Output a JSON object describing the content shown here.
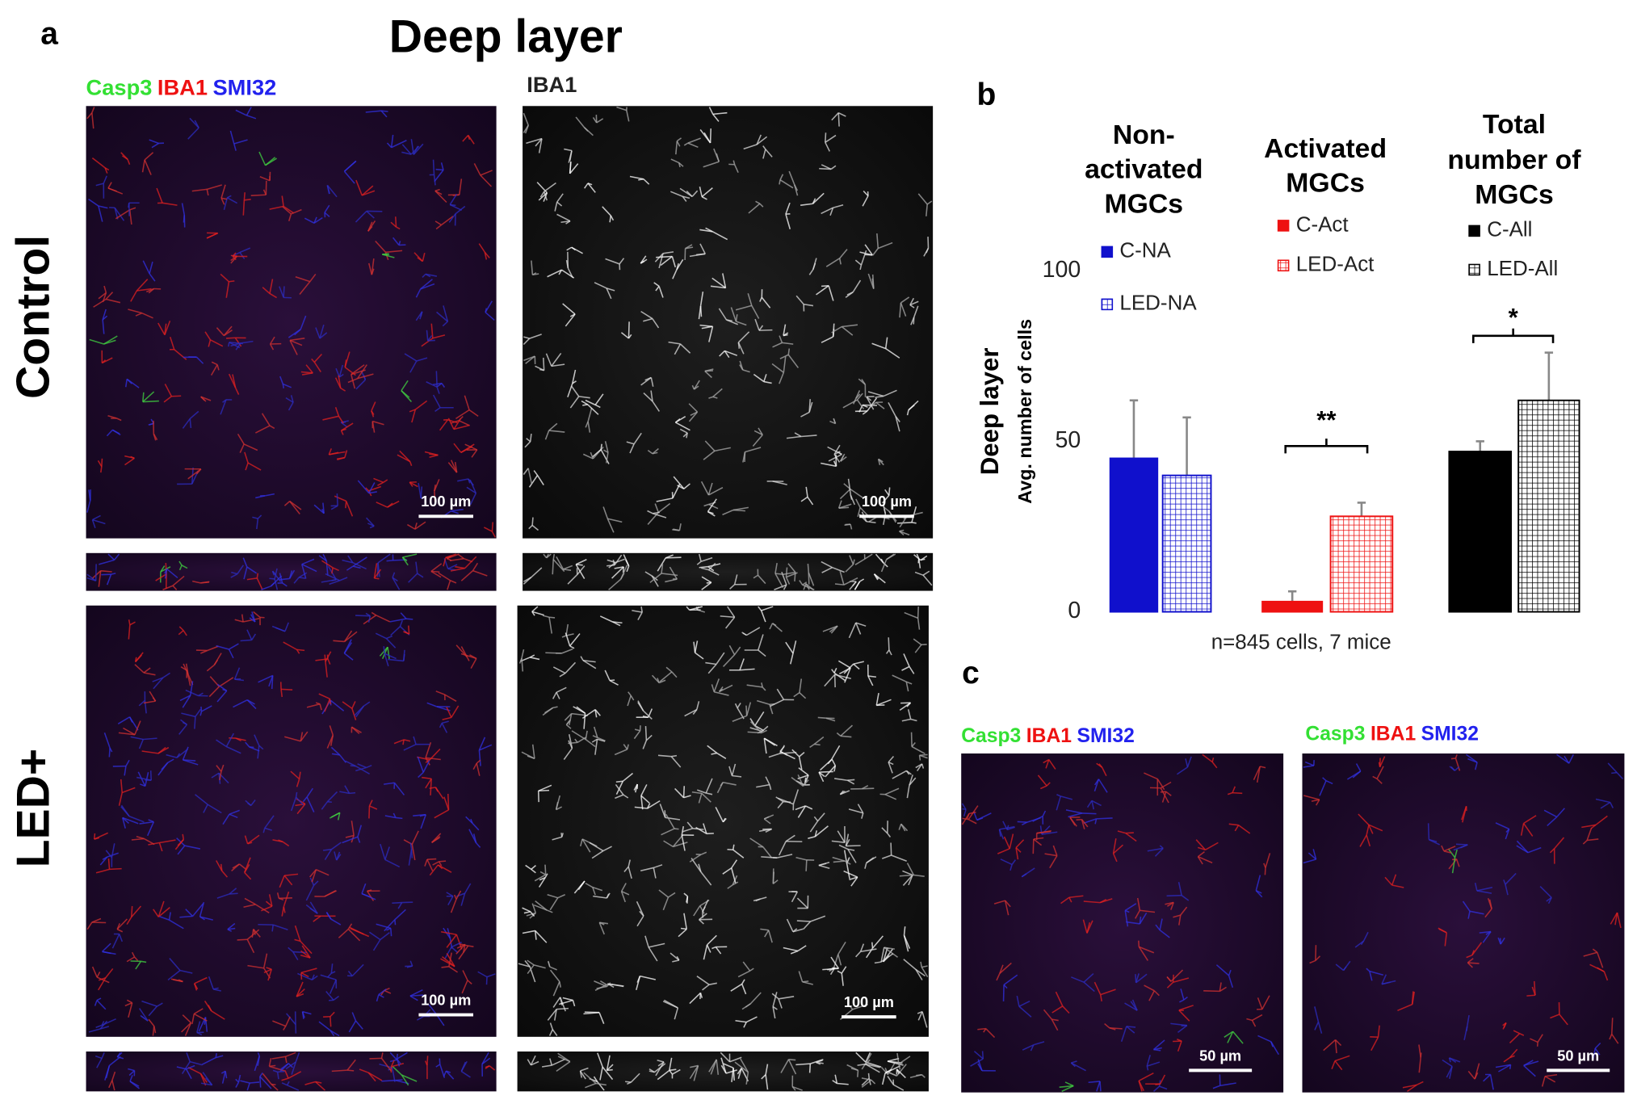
{
  "panel_a": {
    "label": "a",
    "title": "Deep layer",
    "stains": [
      {
        "text": "Casp3",
        "color": "#33e033"
      },
      {
        "text": "IBA1",
        "color": "#ee1111"
      },
      {
        "text": "SMI32",
        "color": "#2222ee"
      }
    ],
    "gray_label": "IBA1",
    "rows": [
      "Control",
      "LED+"
    ],
    "scale_bars": [
      "100 µm",
      "100 µm",
      "100 µm",
      "100 µm"
    ]
  },
  "chart_data": {
    "type": "bar",
    "panel_label": "b",
    "y_label": "Deep layer",
    "y_sublabel": "Avg. number of cells",
    "ylim": [
      0,
      100
    ],
    "yticks": [
      0,
      50,
      100
    ],
    "group_titles": [
      [
        "Non-",
        "activated",
        "MGCs"
      ],
      [
        "Activated",
        "MGCs"
      ],
      [
        "Total",
        "number of",
        "MGCs"
      ]
    ],
    "series": [
      {
        "name": "C-NA",
        "color": "#1010cc",
        "hatched": false,
        "values": [
          45
        ],
        "errors": [
          17
        ]
      },
      {
        "name": "LED-NA",
        "color": "#1010cc",
        "hatched": true,
        "values": [
          40
        ],
        "errors": [
          17
        ]
      },
      {
        "name": "C-Act",
        "color": "#ee1111",
        "hatched": false,
        "values": [
          3
        ],
        "errors": [
          3
        ]
      },
      {
        "name": "LED-Act",
        "color": "#ee1111",
        "hatched": true,
        "values": [
          28
        ],
        "errors": [
          4
        ]
      },
      {
        "name": "C-All",
        "color": "#000000",
        "hatched": false,
        "values": [
          47
        ],
        "errors": [
          3
        ]
      },
      {
        "name": "LED-All",
        "color": "#000000",
        "hatched": true,
        "values": [
          62
        ],
        "errors": [
          14
        ]
      }
    ],
    "significance": [
      "**",
      "*"
    ],
    "note": "n=845 cells, 7 mice"
  },
  "panel_c": {
    "label": "c",
    "images": [
      {
        "stains": [
          {
            "text": "Casp3",
            "color": "#33e033"
          },
          {
            "text": "IBA1",
            "color": "#ee1111"
          },
          {
            "text": "SMI32",
            "color": "#2222ee"
          }
        ],
        "scale_bar": "50 µm"
      },
      {
        "stains": [
          {
            "text": "Casp3",
            "color": "#33e033"
          },
          {
            "text": "IBA1",
            "color": "#ee1111"
          },
          {
            "text": "SMI32",
            "color": "#2222ee"
          }
        ],
        "scale_bar": "50 µm"
      }
    ]
  }
}
